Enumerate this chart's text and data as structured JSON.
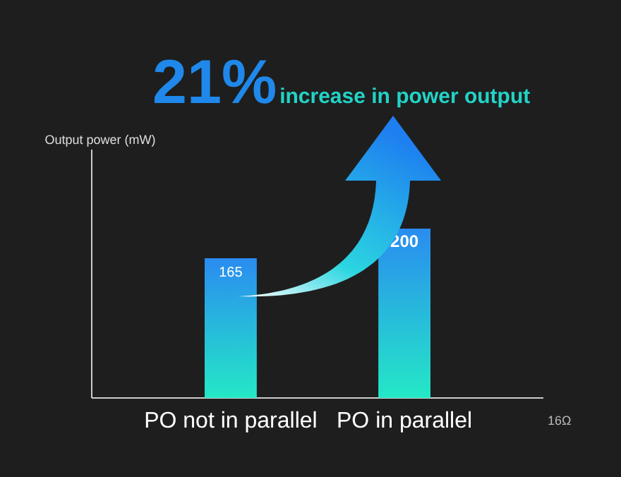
{
  "chart_data": {
    "type": "bar",
    "title": "21%",
    "subtitle": "increase in power output",
    "annotations": [
      "Output power (mW)"
    ],
    "xlabel": "16Ω",
    "categories": [
      "PO not in parallel",
      "PO in parallel"
    ],
    "values": [
      165,
      200
    ],
    "color": "#2a8cf0",
    "data_labels": true
  }
}
